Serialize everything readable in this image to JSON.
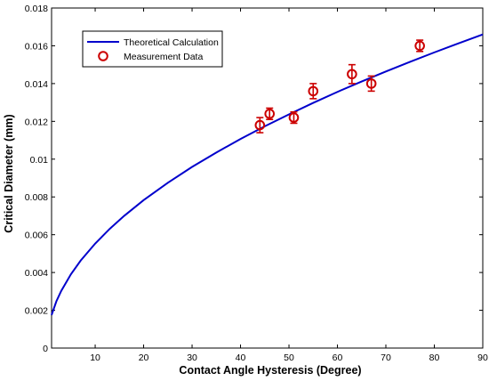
{
  "chart_data": {
    "type": "line",
    "title": "",
    "xlabel": "Contact Angle Hysteresis (Degree)",
    "ylabel": "Critical Diameter (mm)",
    "xlim": [
      1,
      90
    ],
    "ylim": [
      0,
      0.018
    ],
    "x_ticks": [
      10,
      20,
      30,
      40,
      50,
      60,
      70,
      80,
      90
    ],
    "x_tick_labels": [
      "10",
      "20",
      "30",
      "40",
      "50",
      "60",
      "70",
      "80",
      "90"
    ],
    "y_ticks": [
      0,
      0.002,
      0.004,
      0.006,
      0.008,
      0.01,
      0.012,
      0.014,
      0.016,
      0.018
    ],
    "y_tick_labels": [
      "0",
      "0.002",
      "0.004",
      "0.006",
      "0.008",
      "0.01",
      "0.012",
      "0.014",
      "0.016",
      "0.018"
    ],
    "grid": false,
    "legend_position": "top-left",
    "series": [
      {
        "name": "Theoretical Calculation",
        "kind": "line",
        "color": "#0000cc",
        "x": [
          1,
          2,
          3,
          5,
          7,
          10,
          13,
          16,
          20,
          25,
          30,
          35,
          40,
          45,
          50,
          55,
          60,
          65,
          70,
          75,
          80,
          85,
          90
        ],
        "y": [
          0.00175,
          0.00248,
          0.00303,
          0.00391,
          0.00463,
          0.00553,
          0.00631,
          0.007,
          0.00783,
          0.00875,
          0.00959,
          0.01035,
          0.01107,
          0.01174,
          0.01237,
          0.01298,
          0.01356,
          0.01411,
          0.01464,
          0.01515,
          0.01565,
          0.01613,
          0.0166
        ]
      },
      {
        "name": "Measurement Data",
        "kind": "scatter",
        "color": "#cc0000",
        "x": [
          44,
          46,
          51,
          55,
          63,
          67,
          77
        ],
        "y": [
          0.0118,
          0.0124,
          0.0122,
          0.0136,
          0.0145,
          0.014,
          0.016
        ],
        "err": [
          0.0004,
          0.0003,
          0.0003,
          0.0004,
          0.0005,
          0.0004,
          0.0003
        ]
      }
    ]
  }
}
